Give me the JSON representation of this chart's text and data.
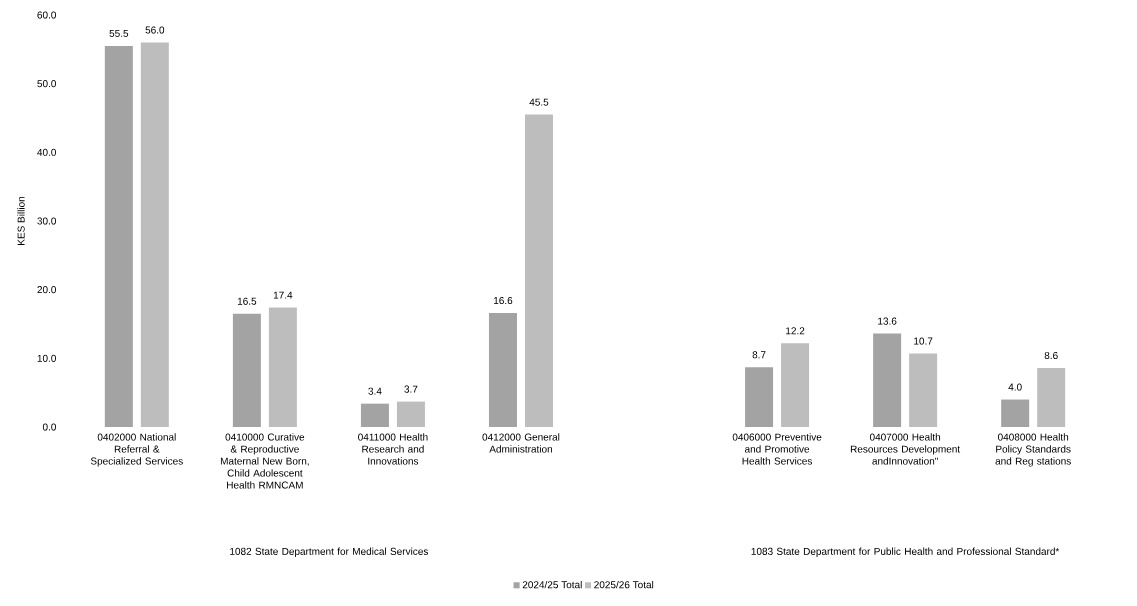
{
  "chart_data": {
    "type": "bar",
    "ylabel": "KES Billion",
    "categories": [
      "0402000 National Referral & Specialized Services",
      "0410000 Curative & Reproductive Maternal New Born, Child Adolescent Health RMNCAM",
      "0411000 Health Research and Innovations",
      "0412000 General Administration",
      null,
      "0406000 Preventive and Promotive Health Services",
      "0407000 Health Resources Development andInnovation\"",
      "0408000 Health Policy Standards and Reg stations"
    ],
    "series": [
      {
        "name": "2024/25 Total",
        "color": "#a3a3a3",
        "values": [
          55.5,
          16.5,
          3.4,
          16.6,
          null,
          8.7,
          13.6,
          4.0
        ],
        "value_labels": [
          "55.5",
          "16.5",
          "3.4",
          "16.6",
          null,
          "8.7",
          "13.6",
          "4.0"
        ]
      },
      {
        "name": "2025/26 Total",
        "color": "#bdbdbd",
        "values": [
          56.0,
          17.4,
          3.7,
          45.5,
          null,
          12.2,
          10.7,
          8.6
        ],
        "value_labels": [
          "56.0",
          "17.4",
          "3.7",
          "45.5",
          null,
          "12.2",
          "10.7",
          "8.6"
        ]
      }
    ],
    "ylim": [
      0,
      60
    ],
    "yticks": [
      {
        "value": 0,
        "label": "0.0"
      },
      {
        "value": 10,
        "label": "10.0"
      },
      {
        "value": 20,
        "label": "20.0"
      },
      {
        "value": 30,
        "label": "30.0"
      },
      {
        "value": 40,
        "label": "40.0"
      },
      {
        "value": 50,
        "label": "50.0"
      },
      {
        "value": 60,
        "label": "60.0"
      }
    ],
    "legend": "bottom",
    "annotations": [
      "1082 State Department for Medical Services",
      "1083 State Department for Public Health and Professional Standard*"
    ]
  }
}
